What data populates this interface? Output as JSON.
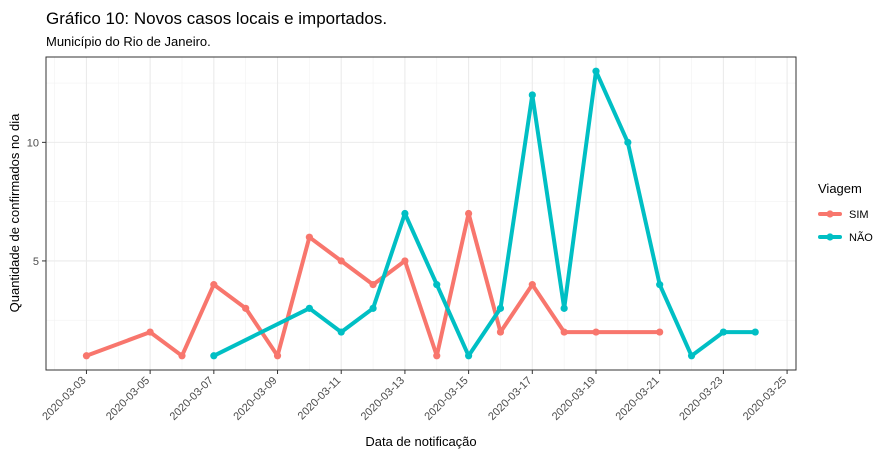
{
  "chart_data": {
    "type": "line",
    "title": "Gráfico 10: Novos casos locais e importados.",
    "subtitle": "Município do Rio de Janeiro.",
    "xlabel": "Data de notificação",
    "ylabel": "Quantidade de confirmados no dia",
    "x_ticks": [
      "2020-03-03",
      "2020-03-05",
      "2020-03-07",
      "2020-03-09",
      "2020-03-11",
      "2020-03-13",
      "2020-03-15",
      "2020-03-17",
      "2020-03-19",
      "2020-03-21",
      "2020-03-23",
      "2020-03-25"
    ],
    "xlim": [
      "2020-03-02",
      "2020-03-25"
    ],
    "y_ticks": [
      5,
      10
    ],
    "ylim": [
      0.4,
      13.6
    ],
    "grid": true,
    "legend": {
      "title": "Viagem",
      "position": "right"
    },
    "series": [
      {
        "name": "SIM",
        "color": "#F8766D",
        "x": [
          "2020-03-03",
          "2020-03-05",
          "2020-03-06",
          "2020-03-07",
          "2020-03-08",
          "2020-03-09",
          "2020-03-10",
          "2020-03-11",
          "2020-03-12",
          "2020-03-13",
          "2020-03-14",
          "2020-03-15",
          "2020-03-16",
          "2020-03-17",
          "2020-03-18",
          "2020-03-19",
          "2020-03-21"
        ],
        "values": [
          1,
          2,
          1,
          4,
          3,
          1,
          6,
          5,
          4,
          5,
          1,
          7,
          2,
          4,
          2,
          2,
          2
        ]
      },
      {
        "name": "NÃO",
        "color": "#00BFC4",
        "x": [
          "2020-03-07",
          "2020-03-10",
          "2020-03-11",
          "2020-03-12",
          "2020-03-13",
          "2020-03-14",
          "2020-03-15",
          "2020-03-16",
          "2020-03-17",
          "2020-03-18",
          "2020-03-19",
          "2020-03-20",
          "2020-03-21",
          "2020-03-22",
          "2020-03-23",
          "2020-03-24"
        ],
        "values": [
          1,
          3,
          2,
          3,
          7,
          4,
          1,
          3,
          12,
          3,
          13,
          10,
          4,
          1,
          2,
          2
        ]
      }
    ]
  }
}
